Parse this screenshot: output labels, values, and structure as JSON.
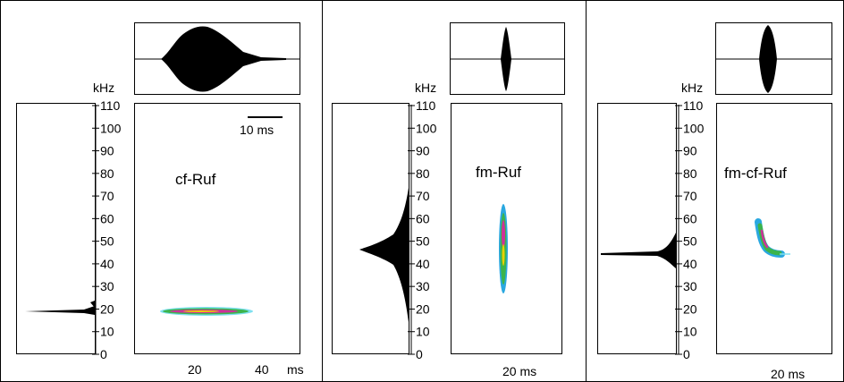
{
  "panels": [
    {
      "title": "cf-Ruf",
      "y_unit": "kHz",
      "y_ticks": [
        "110",
        "100",
        "90",
        "80",
        "70",
        "60",
        "50",
        "40",
        "30",
        "20",
        "10",
        "0"
      ],
      "x_ticks": [
        "20",
        "40"
      ],
      "x_unit": "ms",
      "scale_bar_label": "10 ms",
      "call": {
        "freq_center_khz": 18.5,
        "start_ms": 10,
        "end_ms": 33
      }
    },
    {
      "title": "fm-Ruf",
      "y_unit": "kHz",
      "y_ticks": [
        "110",
        "100",
        "90",
        "80",
        "70",
        "60",
        "50",
        "40",
        "30",
        "20",
        "10",
        "0"
      ],
      "x_ticks": [
        "20 ms"
      ],
      "call": {
        "freq_low_khz": 27,
        "freq_high_khz": 66,
        "time_ms": 20
      }
    },
    {
      "title": "fm-cf-Ruf",
      "y_unit": "kHz",
      "y_ticks": [
        "110",
        "100",
        "90",
        "80",
        "70",
        "60",
        "50",
        "40",
        "30",
        "20",
        "10",
        "0"
      ],
      "x_ticks": [
        "20 ms"
      ],
      "call": {
        "freq_start_khz": 57,
        "freq_end_khz": 45,
        "time_ms": 20
      }
    }
  ],
  "colors": {
    "ink": "#000000",
    "spec_blue": "#2aa8e0",
    "spec_cyan": "#7fe0f0",
    "spec_green": "#3cb44b",
    "spec_magenta": "#d0309a",
    "spec_yellow": "#e8d000"
  }
}
